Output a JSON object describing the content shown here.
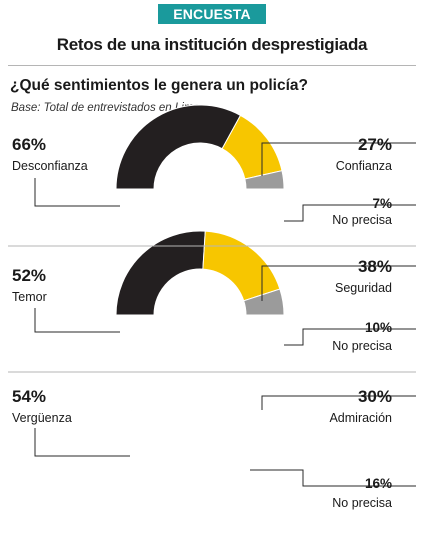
{
  "header": {
    "tag": "ENCUESTA",
    "title": "Retos de una institución desprestigiada"
  },
  "question": "¿Qué sentimientos le genera un policía?",
  "base": "Base: Total de entrevistados en Lima",
  "colors": {
    "dark": "#231f20",
    "yellow": "#f7c600",
    "gray": "#9b9b9b",
    "accent": "#1a9a9c"
  },
  "chart_data": [
    {
      "type": "pie",
      "donut": true,
      "categories": [
        "Desconfianza",
        "Confianza",
        "No precisa"
      ],
      "values": [
        66,
        27,
        7
      ],
      "labels": [
        "66%",
        "27%",
        "7%"
      ]
    },
    {
      "type": "pie",
      "donut": true,
      "categories": [
        "Temor",
        "Seguridad",
        "No precisa"
      ],
      "values": [
        52,
        38,
        10
      ],
      "labels": [
        "52%",
        "38%",
        "10%"
      ]
    },
    {
      "type": "pie",
      "donut": true,
      "categories": [
        "Vergüenza",
        "Admiración",
        "No precisa"
      ],
      "values": [
        54,
        30,
        16
      ],
      "labels": [
        "54%",
        "30%",
        "16%"
      ]
    }
  ]
}
